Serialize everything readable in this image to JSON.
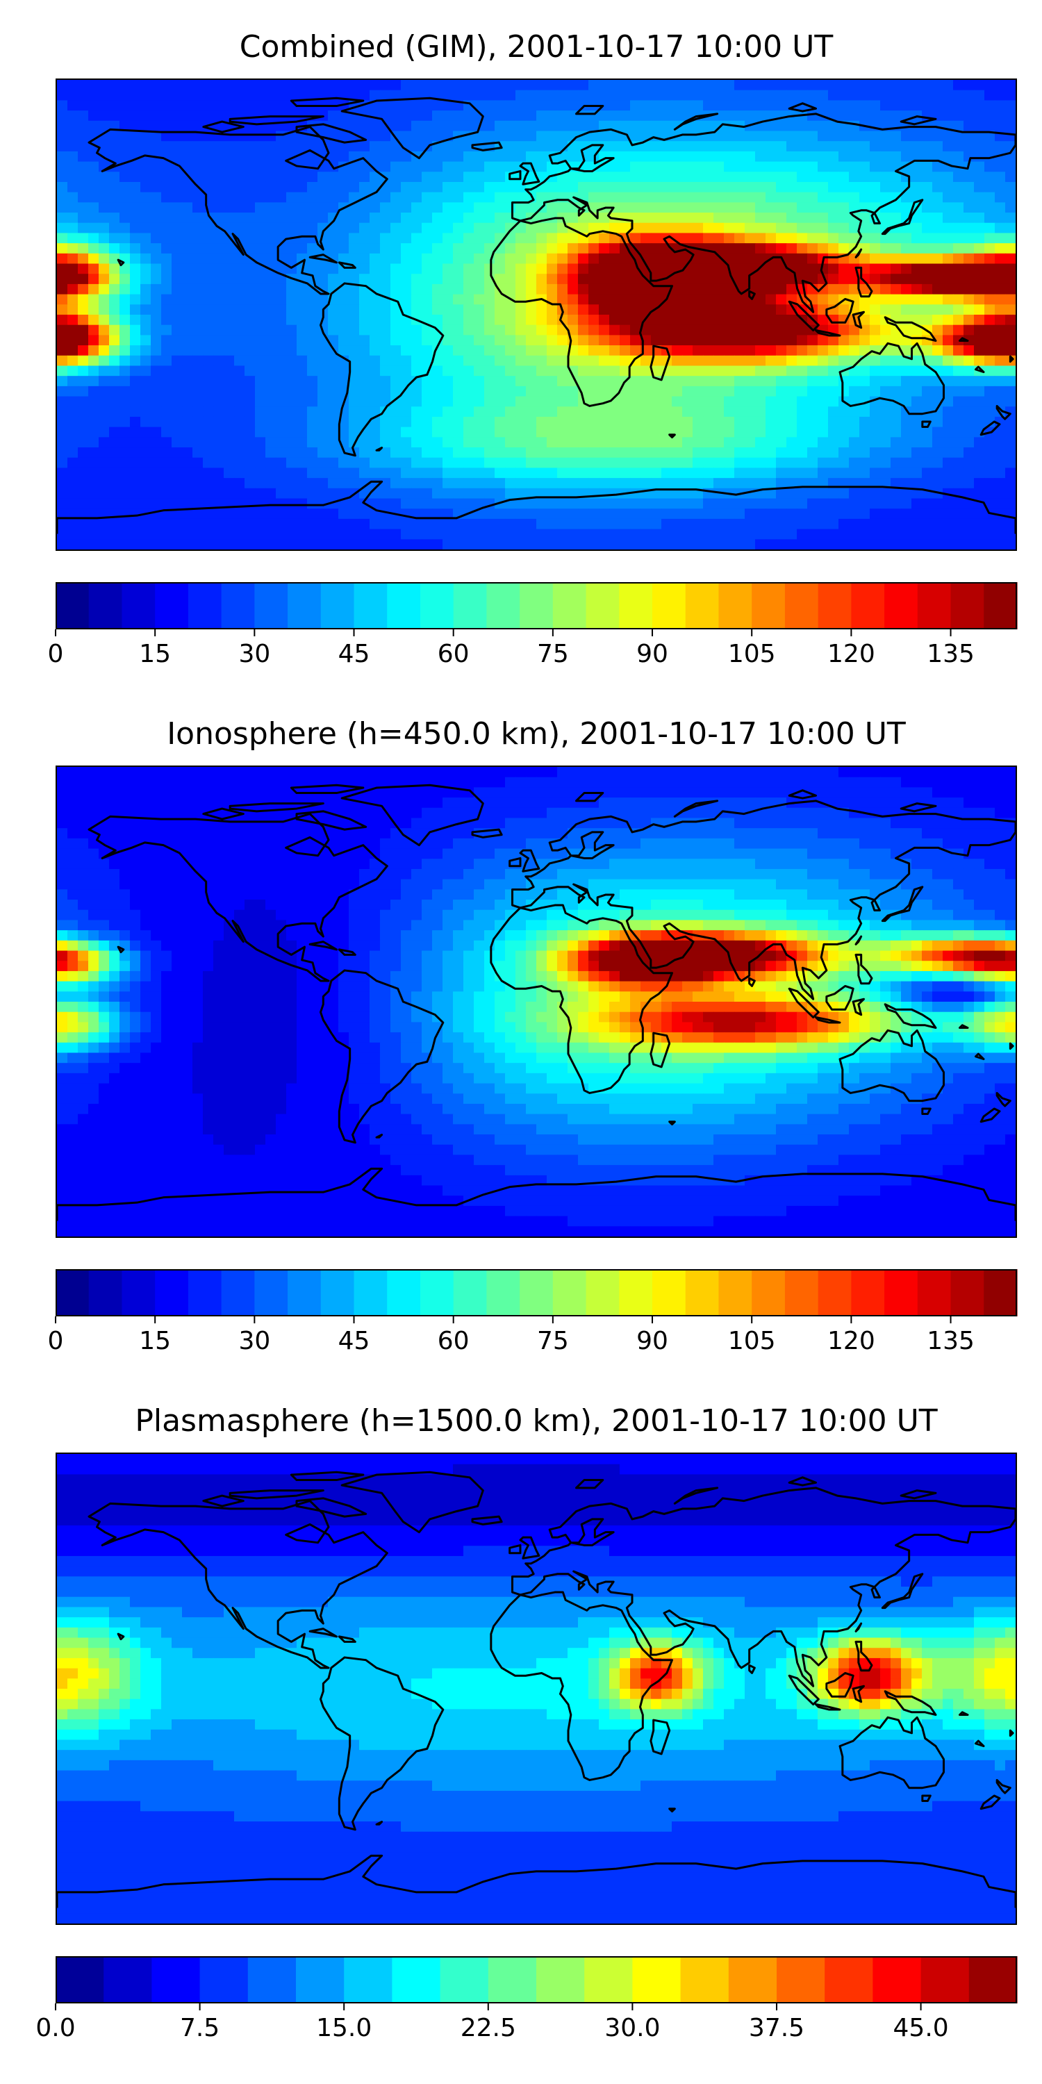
{
  "panels": [
    {
      "title": "Combined (GIM), 2001-10-17 10:00 UT",
      "colorbar": {
        "min": 0,
        "max": 145,
        "levels": 29,
        "ticks": [
          0,
          15,
          30,
          45,
          60,
          75,
          90,
          105,
          120,
          135
        ],
        "tick_labels": [
          "0",
          "15",
          "30",
          "45",
          "60",
          "75",
          "90",
          "105",
          "120",
          "135"
        ]
      },
      "field": {
        "background": 20,
        "blobs": [
          {
            "lon": 45,
            "lat": 14,
            "sx": 22,
            "sy": 10,
            "amp": 115
          },
          {
            "lon": 82,
            "lat": 18,
            "sx": 25,
            "sy": 6,
            "amp": 100
          },
          {
            "lon": 78,
            "lat": -6,
            "sx": 35,
            "sy": 8,
            "amp": 95
          },
          {
            "lon": 155,
            "lat": 14,
            "sx": 22,
            "sy": 5,
            "amp": 115
          },
          {
            "lon": 172,
            "lat": -10,
            "sx": 18,
            "sy": 6,
            "amp": 85
          },
          {
            "lon": -178,
            "lat": 16,
            "sx": 15,
            "sy": 8,
            "amp": 80
          },
          {
            "lon": -178,
            "lat": -8,
            "sx": 15,
            "sy": 8,
            "amp": 75
          },
          {
            "lon": 20,
            "lat": 0,
            "sx": 70,
            "sy": 45,
            "amp": 45
          },
          {
            "lon": 95,
            "lat": 20,
            "sx": 80,
            "sy": 35,
            "amp": 35
          },
          {
            "lon": 30,
            "lat": -50,
            "sx": 70,
            "sy": 12,
            "amp": 25
          }
        ]
      }
    },
    {
      "title": "Ionosphere  (h=450.0 km), 2001-10-17 10:00 UT",
      "colorbar": {
        "min": 0,
        "max": 145,
        "levels": 29,
        "ticks": [
          0,
          15,
          30,
          45,
          60,
          75,
          90,
          105,
          120,
          135
        ],
        "tick_labels": [
          "0",
          "15",
          "30",
          "45",
          "60",
          "75",
          "90",
          "105",
          "120",
          "135"
        ]
      },
      "field": {
        "background": 15,
        "blobs": [
          {
            "lon": 70,
            "lat": 18,
            "sx": 30,
            "sy": 6,
            "amp": 95
          },
          {
            "lon": 40,
            "lat": 15,
            "sx": 20,
            "sy": 7,
            "amp": 75
          },
          {
            "lon": 80,
            "lat": -8,
            "sx": 40,
            "sy": 7,
            "amp": 75
          },
          {
            "lon": 160,
            "lat": 18,
            "sx": 20,
            "sy": 5,
            "amp": 80
          },
          {
            "lon": 160,
            "lat": 3,
            "sx": 18,
            "sy": 5,
            "amp": -30
          },
          {
            "lon": -178,
            "lat": 14,
            "sx": 15,
            "sy": 6,
            "amp": 70
          },
          {
            "lon": -178,
            "lat": -8,
            "sx": 15,
            "sy": 7,
            "amp": 65
          },
          {
            "lon": 25,
            "lat": 0,
            "sx": 65,
            "sy": 40,
            "amp": 40
          },
          {
            "lon": 100,
            "lat": 10,
            "sx": 70,
            "sy": 40,
            "amp": 25
          },
          {
            "lon": -90,
            "lat": 0,
            "sx": 40,
            "sy": 35,
            "amp": -10
          }
        ]
      }
    },
    {
      "title": "Plasmasphere (h=1500.0 km), 2001-10-17 10:00 UT",
      "colorbar": {
        "min": 0,
        "max": 50,
        "levels": 20,
        "ticks": [
          0,
          7.5,
          15,
          22.5,
          30,
          37.5,
          45
        ],
        "tick_labels": [
          "0.0",
          "7.5",
          "15.0",
          "22.5",
          "30.0",
          "37.5",
          "45.0"
        ]
      },
      "field": {
        "background": 8,
        "blobs": [
          {
            "lon": 125,
            "lat": 5,
            "sx": 15,
            "sy": 10,
            "amp": 32
          },
          {
            "lon": 45,
            "lat": 5,
            "sx": 12,
            "sy": 9,
            "amp": 27
          },
          {
            "lon": -178,
            "lat": 5,
            "sx": 20,
            "sy": 15,
            "amp": 20
          },
          {
            "lon": 0,
            "lat": 0,
            "sx": 150,
            "sy": 30,
            "amp": 10
          },
          {
            "lon": 0,
            "lat": 70,
            "sx": 300,
            "sy": 15,
            "amp": -5
          }
        ]
      }
    }
  ]
}
